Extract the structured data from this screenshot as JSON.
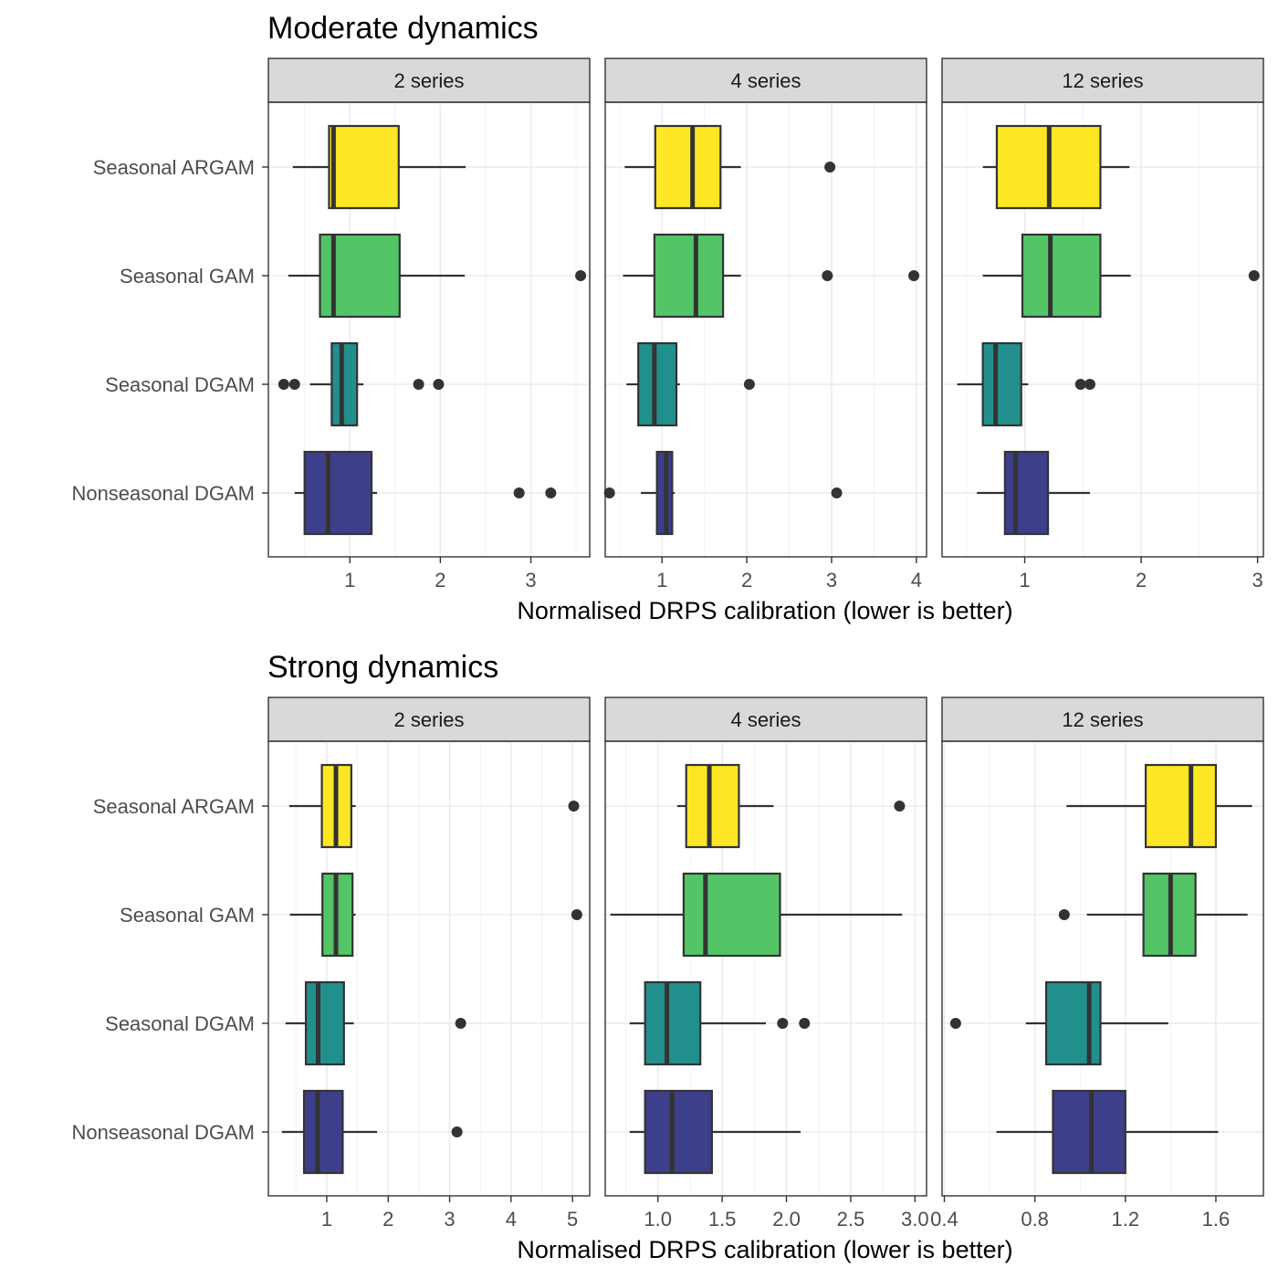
{
  "chart_data": [
    {
      "type": "boxplot",
      "title": "Moderate dynamics",
      "xlabel": "Normalised DRPS calibration (lower is better)",
      "ylabel": "",
      "categories": [
        "Seasonal ARGAM",
        "Seasonal GAM",
        "Seasonal DGAM",
        "Nonseasonal DGAM"
      ],
      "colors": {
        "Seasonal ARGAM": "#fde725",
        "Seasonal GAM": "#53c567",
        "Seasonal DGAM": "#21908c",
        "Nonseasonal DGAM": "#3d3f8b"
      },
      "grid": true,
      "panels": [
        {
          "strip": "2 series",
          "xlim": [
            0.1,
            3.65
          ],
          "xticks": [
            1,
            2,
            3
          ],
          "xtick_labels": [
            "1",
            "2",
            "3"
          ],
          "boxes": [
            {
              "category": "Seasonal ARGAM",
              "whisker_low": 0.37,
              "q1": 0.77,
              "median": 0.82,
              "q3": 1.54,
              "whisker_high": 2.28,
              "outliers": []
            },
            {
              "category": "Seasonal GAM",
              "whisker_low": 0.32,
              "q1": 0.67,
              "median": 0.82,
              "q3": 1.55,
              "whisker_high": 2.27,
              "outliers": [
                3.55
              ]
            },
            {
              "category": "Seasonal DGAM",
              "whisker_low": 0.56,
              "q1": 0.8,
              "median": 0.91,
              "q3": 1.08,
              "whisker_high": 1.15,
              "outliers": [
                0.27,
                0.39,
                1.76,
                1.98
              ]
            },
            {
              "category": "Nonseasonal DGAM",
              "whisker_low": 0.39,
              "q1": 0.5,
              "median": 0.76,
              "q3": 1.24,
              "whisker_high": 1.3,
              "outliers": [
                2.87,
                3.22
              ]
            }
          ]
        },
        {
          "strip": "4 series",
          "xlim": [
            0.33,
            4.12
          ],
          "xticks": [
            1,
            2,
            3,
            4
          ],
          "xtick_labels": [
            "1",
            "2",
            "3",
            "4"
          ],
          "boxes": [
            {
              "category": "Seasonal ARGAM",
              "whisker_low": 0.56,
              "q1": 0.92,
              "median": 1.36,
              "q3": 1.69,
              "whisker_high": 1.93,
              "outliers": [
                2.98
              ]
            },
            {
              "category": "Seasonal GAM",
              "whisker_low": 0.54,
              "q1": 0.91,
              "median": 1.4,
              "q3": 1.72,
              "whisker_high": 1.93,
              "outliers": [
                2.95,
                3.97
              ]
            },
            {
              "category": "Seasonal DGAM",
              "whisker_low": 0.58,
              "q1": 0.72,
              "median": 0.91,
              "q3": 1.17,
              "whisker_high": 1.21,
              "outliers": [
                2.03
              ]
            },
            {
              "category": "Nonseasonal DGAM",
              "whisker_low": 0.75,
              "q1": 0.94,
              "median": 1.05,
              "q3": 1.12,
              "whisker_high": 1.15,
              "outliers": [
                0.38,
                3.06
              ]
            }
          ]
        },
        {
          "strip": "12 series",
          "xlim": [
            0.29,
            3.05
          ],
          "xticks": [
            1,
            2,
            3
          ],
          "xtick_labels": [
            "1",
            "2",
            "3"
          ],
          "boxes": [
            {
              "category": "Seasonal ARGAM",
              "whisker_low": 0.64,
              "q1": 0.76,
              "median": 1.21,
              "q3": 1.65,
              "whisker_high": 1.9,
              "outliers": []
            },
            {
              "category": "Seasonal GAM",
              "whisker_low": 0.64,
              "q1": 0.98,
              "median": 1.22,
              "q3": 1.65,
              "whisker_high": 1.91,
              "outliers": [
                2.97
              ]
            },
            {
              "category": "Seasonal DGAM",
              "whisker_low": 0.42,
              "q1": 0.64,
              "median": 0.75,
              "q3": 0.97,
              "whisker_high": 1.03,
              "outliers": [
                1.48,
                1.56
              ]
            },
            {
              "category": "Nonseasonal DGAM",
              "whisker_low": 0.59,
              "q1": 0.83,
              "median": 0.92,
              "q3": 1.2,
              "whisker_high": 1.56,
              "outliers": []
            }
          ]
        }
      ]
    },
    {
      "type": "boxplot",
      "title": "Strong dynamics",
      "xlabel": "Normalised DRPS calibration (lower is better)",
      "ylabel": "",
      "categories": [
        "Seasonal ARGAM",
        "Seasonal GAM",
        "Seasonal DGAM",
        "Nonseasonal DGAM"
      ],
      "colors": {
        "Seasonal ARGAM": "#fde725",
        "Seasonal GAM": "#53c567",
        "Seasonal DGAM": "#21908c",
        "Nonseasonal DGAM": "#3d3f8b"
      },
      "grid": true,
      "panels": [
        {
          "strip": "2 series",
          "xlim": [
            0.05,
            5.28
          ],
          "xticks": [
            1,
            2,
            3,
            4,
            5
          ],
          "xtick_labels": [
            "1",
            "2",
            "3",
            "4",
            "5"
          ],
          "boxes": [
            {
              "category": "Seasonal ARGAM",
              "whisker_low": 0.39,
              "q1": 0.92,
              "median": 1.15,
              "q3": 1.4,
              "whisker_high": 1.47,
              "outliers": [
                5.02
              ]
            },
            {
              "category": "Seasonal GAM",
              "whisker_low": 0.4,
              "q1": 0.93,
              "median": 1.15,
              "q3": 1.42,
              "whisker_high": 1.47,
              "outliers": [
                5.07
              ]
            },
            {
              "category": "Seasonal DGAM",
              "whisker_low": 0.33,
              "q1": 0.66,
              "median": 0.86,
              "q3": 1.28,
              "whisker_high": 1.44,
              "outliers": [
                3.18
              ]
            },
            {
              "category": "Nonseasonal DGAM",
              "whisker_low": 0.27,
              "q1": 0.63,
              "median": 0.85,
              "q3": 1.26,
              "whisker_high": 1.82,
              "outliers": [
                3.12
              ]
            }
          ]
        },
        {
          "strip": "4 series",
          "xlim": [
            0.59,
            3.09
          ],
          "xticks": [
            1.0,
            1.5,
            2.0,
            2.5,
            3.0
          ],
          "xtick_labels": [
            "1.0",
            "1.5",
            "2.0",
            "2.5",
            "3.0"
          ],
          "boxes": [
            {
              "category": "Seasonal ARGAM",
              "whisker_low": 1.15,
              "q1": 1.22,
              "median": 1.4,
              "q3": 1.63,
              "whisker_high": 1.9,
              "outliers": [
                2.88
              ]
            },
            {
              "category": "Seasonal GAM",
              "whisker_low": 0.63,
              "q1": 1.2,
              "median": 1.37,
              "q3": 1.95,
              "whisker_high": 2.9,
              "outliers": []
            },
            {
              "category": "Seasonal DGAM",
              "whisker_low": 0.78,
              "q1": 0.9,
              "median": 1.07,
              "q3": 1.33,
              "whisker_high": 1.84,
              "outliers": [
                1.97,
                2.14
              ]
            },
            {
              "category": "Nonseasonal DGAM",
              "whisker_low": 0.78,
              "q1": 0.9,
              "median": 1.11,
              "q3": 1.42,
              "whisker_high": 2.11,
              "outliers": []
            }
          ]
        },
        {
          "strip": "12 series",
          "xlim": [
            0.39,
            1.81
          ],
          "xticks": [
            0.4,
            0.8,
            1.2,
            1.6
          ],
          "xtick_labels": [
            "0.4",
            "0.8",
            "1.2",
            "1.6"
          ],
          "boxes": [
            {
              "category": "Seasonal ARGAM",
              "whisker_low": 0.94,
              "q1": 1.29,
              "median": 1.49,
              "q3": 1.6,
              "whisker_high": 1.76,
              "outliers": []
            },
            {
              "category": "Seasonal GAM",
              "whisker_low": 1.03,
              "q1": 1.28,
              "median": 1.4,
              "q3": 1.51,
              "whisker_high": 1.74,
              "outliers": [
                0.93
              ]
            },
            {
              "category": "Seasonal DGAM",
              "whisker_low": 0.76,
              "q1": 0.85,
              "median": 1.04,
              "q3": 1.09,
              "whisker_high": 1.39,
              "outliers": [
                0.45
              ]
            },
            {
              "category": "Nonseasonal DGAM",
              "whisker_low": 0.63,
              "q1": 0.88,
              "median": 1.05,
              "q3": 1.2,
              "whisker_high": 1.61,
              "outliers": []
            }
          ]
        }
      ]
    }
  ]
}
